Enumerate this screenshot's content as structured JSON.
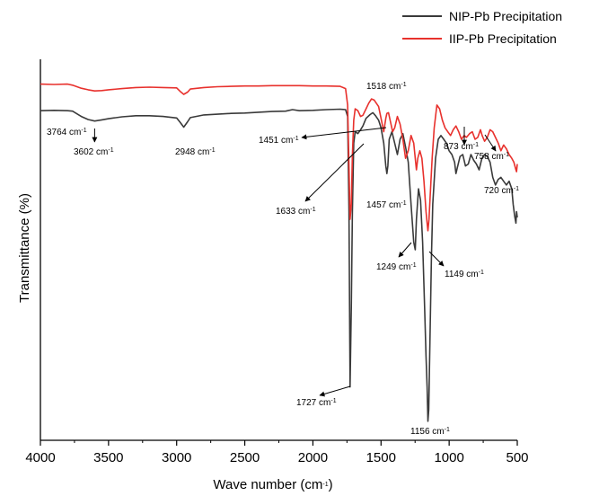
{
  "chart_data": {
    "type": "line",
    "title": "",
    "xlabel": "Wave number (cm-1)",
    "xlabel_main": "Wave number (cm",
    "xlabel_sup": "-1",
    "xlabel_tail": ")",
    "ylabel": "Transmittance (%)",
    "xlim": [
      4000,
      500
    ],
    "x_reversed": true,
    "ylim": [
      0,
      100
    ],
    "y_ticks_shown": false,
    "x_ticks": [
      4000,
      3500,
      3000,
      2500,
      2000,
      1500,
      1000,
      500
    ],
    "grid": false,
    "legend_position": "top-right",
    "series": [
      {
        "name": "NIP-Pb Precipitation",
        "color": "#3a3a3a",
        "x": [
          4000,
          3900,
          3800,
          3764,
          3700,
          3650,
          3602,
          3550,
          3500,
          3400,
          3300,
          3200,
          3100,
          3000,
          2975,
          2948,
          2920,
          2900,
          2800,
          2700,
          2600,
          2500,
          2400,
          2300,
          2200,
          2150,
          2100,
          2000,
          1900,
          1800,
          1760,
          1745,
          1735,
          1727,
          1718,
          1710,
          1700,
          1690,
          1670,
          1650,
          1633,
          1610,
          1580,
          1560,
          1540,
          1518,
          1500,
          1480,
          1465,
          1457,
          1450,
          1440,
          1420,
          1400,
          1380,
          1360,
          1340,
          1320,
          1300,
          1280,
          1260,
          1249,
          1240,
          1225,
          1210,
          1195,
          1180,
          1170,
          1162,
          1156,
          1150,
          1140,
          1130,
          1120,
          1100,
          1080,
          1060,
          1040,
          1020,
          1000,
          980,
          960,
          950,
          940,
          920,
          900,
          880,
          860,
          840,
          820,
          800,
          780,
          760,
          740,
          720,
          700,
          680,
          660,
          640,
          620,
          600,
          580,
          560,
          540,
          530,
          520,
          510,
          505,
          500
        ],
        "y": [
          86.5,
          86.6,
          86.5,
          86.4,
          85.0,
          84.2,
          83.8,
          84.1,
          84.4,
          84.9,
          85.2,
          85.2,
          85.0,
          84.6,
          83.5,
          82.2,
          83.6,
          84.7,
          85.4,
          85.6,
          85.8,
          85.9,
          86.1,
          86.3,
          86.4,
          86.8,
          86.5,
          86.6,
          86.8,
          86.9,
          86.8,
          85.0,
          60.0,
          14.0,
          35.0,
          60.0,
          78.0,
          81.0,
          80.5,
          81.5,
          82.5,
          84.5,
          85.5,
          86.0,
          85.2,
          84.0,
          82.0,
          78.0,
          72.0,
          70.0,
          72.0,
          79.0,
          81.0,
          78.0,
          75.0,
          79.0,
          80.5,
          77.0,
          73.0,
          62.0,
          52.0,
          50.0,
          58.0,
          66.0,
          63.0,
          52.0,
          35.0,
          22.0,
          14.0,
          5.0,
          8.0,
          28.0,
          48.0,
          62.0,
          74.0,
          79.0,
          80.0,
          79.0,
          78.0,
          76.0,
          75.0,
          73.0,
          70.0,
          71.5,
          74.5,
          75.0,
          72.0,
          72.5,
          75.0,
          73.5,
          72.5,
          71.0,
          74.0,
          75.0,
          74.5,
          73.0,
          69.0,
          67.0,
          68.5,
          69.0,
          68.0,
          67.0,
          68.0,
          66.0,
          62.0,
          59.0,
          57.0,
          60.0,
          58.5
        ]
      },
      {
        "name": "IIP-Pb Precipitation",
        "color": "#e8312d",
        "x": [
          4000,
          3900,
          3800,
          3764,
          3700,
          3650,
          3602,
          3550,
          3500,
          3400,
          3300,
          3200,
          3100,
          3000,
          2975,
          2948,
          2920,
          2900,
          2800,
          2700,
          2600,
          2500,
          2400,
          2300,
          2200,
          2100,
          2000,
          1900,
          1800,
          1760,
          1745,
          1735,
          1727,
          1718,
          1710,
          1700,
          1690,
          1670,
          1650,
          1633,
          1610,
          1590,
          1570,
          1550,
          1535,
          1518,
          1500,
          1480,
          1465,
          1457,
          1445,
          1430,
          1415,
          1400,
          1380,
          1360,
          1340,
          1320,
          1300,
          1280,
          1260,
          1249,
          1240,
          1230,
          1215,
          1200,
          1185,
          1170,
          1162,
          1156,
          1148,
          1138,
          1125,
          1110,
          1090,
          1070,
          1050,
          1030,
          1010,
          990,
          970,
          950,
          930,
          910,
          890,
          873,
          850,
          830,
          810,
          790,
          770,
          758,
          740,
          720,
          700,
          680,
          660,
          640,
          620,
          600,
          580,
          560,
          540,
          525,
          510,
          505,
          500
        ],
        "y": [
          93.5,
          93.4,
          93.5,
          93.2,
          92.4,
          92.0,
          91.7,
          91.8,
          92.0,
          92.3,
          92.6,
          92.7,
          92.6,
          92.5,
          91.6,
          90.8,
          91.4,
          92.2,
          92.6,
          92.8,
          92.9,
          93.0,
          93.0,
          93.1,
          93.1,
          93.1,
          93.0,
          93.0,
          92.9,
          92.3,
          88.0,
          72.0,
          58.0,
          62.0,
          75.0,
          84.0,
          87.0,
          86.5,
          85.0,
          85.3,
          87.0,
          88.5,
          89.6,
          89.3,
          88.5,
          87.6,
          84.5,
          81.0,
          84.5,
          85.8,
          86.0,
          83.5,
          81.0,
          82.0,
          85.0,
          83.0,
          79.0,
          74.0,
          76.0,
          80.0,
          78.0,
          74.0,
          71.0,
          74.0,
          76.0,
          74.0,
          68.0,
          60.0,
          57.0,
          55.0,
          58.0,
          65.0,
          74.0,
          82.0,
          88.0,
          87.0,
          84.0,
          82.0,
          81.0,
          80.0,
          81.5,
          82.5,
          81.0,
          79.0,
          80.0,
          79.5,
          80.5,
          81.0,
          79.0,
          79.5,
          81.5,
          80.0,
          78.5,
          79.5,
          81.5,
          81.0,
          79.5,
          78.0,
          76.0,
          77.5,
          76.5,
          75.0,
          74.0,
          73.0,
          71.0,
          70.5,
          72.5
        ]
      }
    ],
    "annotations": [
      {
        "num": "3764",
        "unit": "cm",
        "sup": "-1",
        "x": 3764,
        "y": 86.4,
        "label_pos": "left-below"
      },
      {
        "num": "3602",
        "unit": "cm",
        "sup": "-1",
        "x": 3602,
        "y": 83.8,
        "label_pos": "below-arrow"
      },
      {
        "num": "2948",
        "unit": "cm",
        "sup": "-1",
        "x": 2948,
        "y": 82.2,
        "label_pos": "below"
      },
      {
        "num": "1451",
        "unit": "cm",
        "sup": "-1",
        "x": 1451,
        "y": 85.5,
        "label_pos": "left-arrow"
      },
      {
        "num": "1518",
        "unit": "cm",
        "sup": "-1",
        "x": 1518,
        "y": 94.5,
        "label_pos": "above"
      },
      {
        "num": "1633",
        "unit": "cm",
        "sup": "-1",
        "x": 1633,
        "y": 81.5,
        "label_pos": "below-left-arrow"
      },
      {
        "num": "1457",
        "unit": "cm",
        "sup": "-1",
        "x": 1457,
        "y": 70.0,
        "label_pos": "below"
      },
      {
        "num": "1249",
        "unit": "cm",
        "sup": "-1",
        "x": 1249,
        "y": 50.0,
        "label_pos": "below-left-arrow"
      },
      {
        "num": "1149",
        "unit": "cm",
        "sup": "-1",
        "x": 1149,
        "y": 57.0,
        "label_pos": "below-right-arrow"
      },
      {
        "num": "1727",
        "unit": "cm",
        "sup": "-1",
        "x": 1727,
        "y": 14.0,
        "label_pos": "left-arrow"
      },
      {
        "num": "1156",
        "unit": "cm",
        "sup": "-1",
        "x": 1156,
        "y": 5.0,
        "label_pos": "below"
      },
      {
        "num": "873",
        "unit": "cm",
        "sup": "-1",
        "x": 873,
        "y": 79.5,
        "label_pos": "below-arrow"
      },
      {
        "num": "758",
        "unit": "cm",
        "sup": "-1",
        "x": 758,
        "y": 78.5,
        "label_pos": "below-right-arrow"
      },
      {
        "num": "720",
        "unit": "cm",
        "sup": "-1",
        "x": 720,
        "y": 73.0,
        "label_pos": "below"
      }
    ]
  }
}
